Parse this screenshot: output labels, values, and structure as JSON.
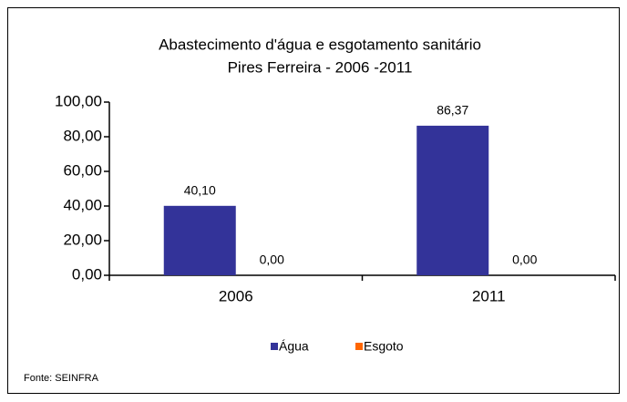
{
  "chart_data": {
    "type": "bar",
    "title": [
      "Abastecimento d'água e esgotamento sanitário",
      "Pires Ferreira - 2006 -2011"
    ],
    "categories": [
      "2006",
      "2011"
    ],
    "series": [
      {
        "name": "Água",
        "color": "#333399",
        "values": [
          40.1,
          86.37
        ],
        "value_labels": [
          "40,10",
          "86,37"
        ]
      },
      {
        "name": "Esgoto",
        "color": "#FF6600",
        "values": [
          0,
          0
        ],
        "value_labels": [
          "0,00",
          "0,00"
        ]
      }
    ],
    "ylim": [
      0,
      100
    ],
    "yticks": [
      {
        "value": 0,
        "label": "0,00"
      },
      {
        "value": 20,
        "label": "20,00"
      },
      {
        "value": 40,
        "label": "40,00"
      },
      {
        "value": 60,
        "label": "60,00"
      },
      {
        "value": 80,
        "label": "80,00"
      },
      {
        "value": 100,
        "label": "100,00"
      }
    ],
    "grid": false,
    "legend": "bottom",
    "source": "Fonte: SEINFRA"
  }
}
